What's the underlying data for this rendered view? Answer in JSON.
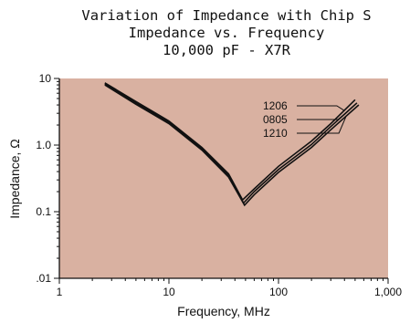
{
  "chart_data": {
    "type": "line",
    "title_lines": [
      "Variation of Impedance with Chip S",
      "Impedance vs. Frequency",
      "10,000 pF - X7R"
    ],
    "xlabel": "Frequency, MHz",
    "ylabel": "Impedance, Ω",
    "x_scale": "log",
    "y_scale": "log",
    "xlim": [
      1,
      1000
    ],
    "ylim": [
      0.01,
      10
    ],
    "x_tick_values": [
      1,
      10,
      100,
      1000
    ],
    "x_tick_labels": [
      "1",
      "10",
      "100",
      "1,000"
    ],
    "y_tick_values": [
      0.01,
      0.1,
      1,
      10
    ],
    "y_tick_labels": [
      ".01",
      "0.1",
      "1.0",
      "10"
    ],
    "plot_background": "#d9b1a1",
    "line_color": "#111111",
    "grid": false,
    "legend": "top-right",
    "series": [
      {
        "name": "1206",
        "x": [
          2.6,
          5,
          10,
          20,
          35,
          47,
          60,
          100,
          200,
          300,
          500
        ],
        "y": [
          8.6,
          4.5,
          2.3,
          0.92,
          0.37,
          0.15,
          0.22,
          0.48,
          1.15,
          2.1,
          4.8
        ]
      },
      {
        "name": "0805",
        "x": [
          2.6,
          5,
          10,
          20,
          35,
          48,
          60,
          100,
          200,
          300,
          520
        ],
        "y": [
          8.3,
          4.3,
          2.2,
          0.88,
          0.35,
          0.135,
          0.2,
          0.43,
          1.02,
          1.9,
          4.3
        ]
      },
      {
        "name": "1210",
        "x": [
          2.6,
          5,
          10,
          20,
          35,
          49,
          60,
          100,
          200,
          300,
          540
        ],
        "y": [
          8.0,
          4.1,
          2.1,
          0.84,
          0.33,
          0.125,
          0.18,
          0.39,
          0.92,
          1.7,
          4.0
        ]
      }
    ]
  }
}
